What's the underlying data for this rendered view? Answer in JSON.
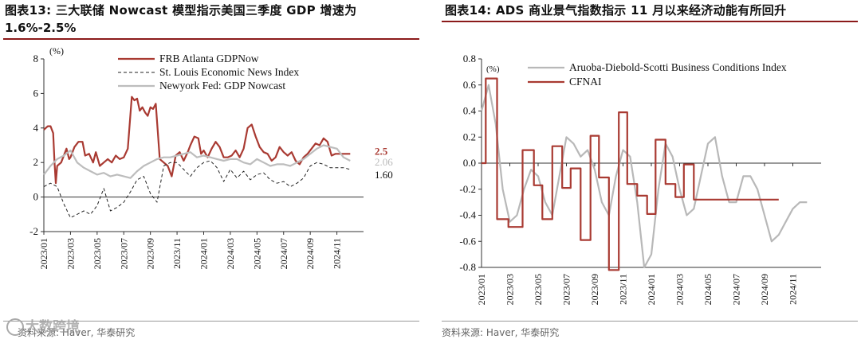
{
  "left_chart": {
    "title_line1": "图表13:  三大联储  Nowcast  模型指示美国三季度  GDP  增速为",
    "title_line2": "1.6%-2.5%",
    "source": "资料来源:  Haver,  华泰研究",
    "watermark": "大数跨境"
  },
  "right_chart": {
    "title": "图表14:  ADS 商业景气指数指示 11 月以来经济动能有所回升",
    "source": "资料来源:  Haver,  华泰研究"
  },
  "chart_data": [
    {
      "type": "line",
      "title": "三大联储 Nowcast 模型指示美国三季度 GDP 增速为 1.6%-2.5%",
      "ylabel": "(%)",
      "ylim": [
        -2,
        8
      ],
      "yticks": [
        "-2",
        "0",
        "2",
        "4",
        "6",
        "8"
      ],
      "xlim": [
        0,
        24
      ],
      "xtick_labels": [
        "2023/01",
        "2023/03",
        "2023/05",
        "2023/07",
        "2023/09",
        "2023/11",
        "2024/01",
        "2024/03",
        "2024/05",
        "2024/07",
        "2024/09",
        "2024/11"
      ],
      "end_labels": [
        "2.5",
        "2.06",
        "1.60"
      ],
      "series": [
        {
          "name": "FRB Atlanta GDPNow",
          "color": "#a93a32",
          "style": "solid",
          "x": [
            0,
            0.3,
            0.5,
            0.7,
            0.8,
            0.9,
            1.0,
            1.3,
            1.7,
            1.9,
            2.0,
            2.3,
            2.6,
            2.9,
            3.1,
            3.4,
            3.7,
            3.9,
            4.2,
            4.5,
            4.8,
            5.1,
            5.4,
            5.7,
            6.0,
            6.3,
            6.6,
            6.8,
            7.0,
            7.2,
            7.4,
            7.6,
            7.8,
            8.0,
            8.2,
            8.4,
            8.7,
            9.0,
            9.3,
            9.6,
            9.9,
            10.2,
            10.5,
            10.8,
            11.0,
            11.3,
            11.6,
            11.8,
            12.0,
            12.3,
            12.6,
            12.9,
            13.2,
            13.5,
            13.8,
            14.1,
            14.4,
            14.7,
            15.0,
            15.3,
            15.6,
            15.9,
            16.2,
            16.5,
            16.8,
            17.1,
            17.4,
            17.7,
            18.0,
            18.3,
            18.6,
            18.9,
            19.2,
            19.5,
            19.8,
            20.1,
            20.4,
            20.7,
            21.0,
            21.3,
            21.6,
            21.9,
            22.2,
            22.5,
            22.8,
            23.0
          ],
          "y": [
            3.9,
            4.1,
            4.1,
            3.7,
            2.0,
            0.8,
            1.8,
            2.0,
            2.8,
            2.2,
            2.3,
            2.9,
            3.2,
            3.2,
            2.4,
            2.5,
            2.0,
            2.6,
            1.8,
            2.0,
            2.2,
            2.0,
            2.4,
            2.2,
            2.3,
            2.8,
            5.8,
            5.6,
            5.7,
            5.0,
            5.2,
            4.9,
            4.7,
            5.2,
            5.1,
            5.4,
            2.2,
            2.0,
            1.8,
            1.2,
            2.4,
            2.6,
            2.1,
            2.6,
            3.0,
            3.5,
            3.4,
            2.5,
            2.7,
            2.3,
            2.8,
            3.2,
            2.9,
            2.3,
            2.3,
            2.4,
            2.7,
            2.3,
            2.8,
            4.0,
            4.2,
            3.5,
            2.9,
            2.6,
            2.5,
            2.1,
            2.3,
            2.9,
            2.6,
            2.4,
            2.6,
            2.1,
            1.9,
            2.3,
            2.5,
            2.8,
            3.1,
            3.0,
            3.4,
            3.2,
            2.4,
            2.5,
            2.5,
            2.5,
            2.5,
            2.5
          ]
        },
        {
          "name": "St. Louis Economic News Index",
          "color": "#222222",
          "style": "dashed",
          "x": [
            0,
            0.5,
            1.0,
            1.5,
            2.0,
            2.5,
            3.0,
            3.5,
            4.0,
            4.5,
            5.0,
            5.5,
            6.0,
            6.5,
            7.0,
            7.5,
            8.0,
            8.5,
            9.0,
            9.5,
            10.0,
            10.5,
            11.0,
            11.5,
            12.0,
            12.5,
            13.0,
            13.5,
            14.0,
            14.5,
            15.0,
            15.5,
            16.0,
            16.5,
            17.0,
            17.5,
            18.0,
            18.5,
            19.0,
            19.5,
            20.0,
            20.5,
            21.0,
            21.5,
            22.0,
            22.5,
            23.0
          ],
          "y": [
            0.6,
            0.8,
            0.6,
            -0.4,
            -1.2,
            -1.0,
            -0.8,
            -1.0,
            -0.5,
            0.5,
            -0.8,
            -0.6,
            -0.3,
            0.3,
            1.0,
            1.2,
            0.2,
            -0.3,
            1.8,
            2.0,
            2.0,
            1.6,
            1.2,
            1.7,
            2.0,
            2.1,
            1.7,
            0.9,
            1.6,
            1.1,
            1.5,
            1.0,
            1.3,
            1.4,
            1.0,
            0.8,
            0.9,
            0.6,
            0.8,
            1.1,
            1.8,
            2.0,
            1.9,
            1.7,
            1.7,
            1.7,
            1.6
          ]
        },
        {
          "name": "Newyork Fed: GDP Nowcast",
          "color": "#bdbdbd",
          "style": "solid",
          "x": [
            0,
            0.5,
            1.0,
            1.5,
            2.0,
            2.5,
            3.0,
            3.5,
            4.0,
            4.5,
            5.0,
            5.5,
            6.0,
            6.5,
            7.0,
            7.5,
            8.0,
            8.5,
            9.0,
            9.5,
            10.0,
            10.5,
            11.0,
            11.5,
            12.0,
            12.5,
            13.0,
            13.5,
            14.0,
            14.5,
            15.0,
            15.5,
            16.0,
            16.5,
            17.0,
            17.5,
            18.0,
            18.5,
            19.0,
            19.5,
            20.0,
            20.5,
            21.0,
            21.5,
            22.0,
            22.5,
            23.0
          ],
          "y": [
            1.3,
            1.8,
            2.2,
            2.4,
            2.7,
            2.0,
            1.7,
            1.5,
            1.3,
            1.4,
            1.2,
            1.3,
            1.2,
            1.1,
            1.5,
            1.8,
            2.0,
            2.2,
            2.3,
            2.3,
            2.4,
            2.5,
            2.6,
            2.3,
            2.4,
            2.3,
            2.2,
            2.1,
            2.2,
            2.2,
            2.0,
            1.9,
            2.2,
            2.0,
            1.8,
            1.9,
            1.9,
            1.8,
            2.0,
            2.2,
            2.5,
            2.8,
            3.0,
            2.9,
            2.8,
            2.3,
            2.1
          ]
        }
      ]
    },
    {
      "type": "line",
      "title": "ADS 商业景气指数指示 11 月以来经济动能有所回升",
      "ylim": [
        -0.8,
        0.8
      ],
      "yticks": [
        "-0.8",
        "-0.6",
        "-0.4",
        "-0.2",
        "0.0",
        "0.2",
        "0.4",
        "0.6",
        "0.8"
      ],
      "extra_label": "(%)",
      "xlim": [
        0,
        24
      ],
      "xtick_labels": [
        "2023/01",
        "2023/03",
        "2023/05",
        "2023/07",
        "2023/09",
        "2023/11",
        "2024/01",
        "2024/03",
        "2024/05",
        "2024/07",
        "2024/09",
        "2024/11"
      ],
      "series": [
        {
          "name": "Aruoba-Diebold-Scotti Business Conditions Index",
          "color": "#b8b8b8",
          "style": "solid",
          "x": [
            0,
            0.5,
            1.0,
            1.5,
            2.0,
            2.5,
            3.0,
            3.5,
            4.0,
            4.5,
            5.0,
            5.5,
            6.0,
            6.5,
            7.0,
            7.5,
            8.0,
            8.5,
            9.0,
            9.5,
            10.0,
            10.5,
            11.0,
            11.5,
            12.0,
            12.5,
            13.0,
            13.5,
            14.0,
            14.5,
            15.0,
            15.5,
            16.0,
            16.5,
            17.0,
            17.5,
            18.0,
            18.5,
            19.0,
            19.5,
            20.0,
            20.5,
            21.0,
            21.5,
            22.0,
            22.5,
            23.0
          ],
          "y": [
            0.4,
            0.6,
            0.3,
            -0.2,
            -0.45,
            -0.4,
            -0.2,
            -0.05,
            -0.1,
            -0.3,
            -0.4,
            -0.1,
            0.2,
            0.15,
            0.05,
            0.1,
            -0.05,
            -0.3,
            -0.4,
            -0.1,
            0.1,
            0.05,
            -0.3,
            -0.8,
            -0.7,
            -0.2,
            0.15,
            0.05,
            -0.2,
            -0.4,
            -0.35,
            -0.1,
            0.15,
            0.2,
            -0.1,
            -0.3,
            -0.3,
            -0.1,
            -0.1,
            -0.2,
            -0.4,
            -0.6,
            -0.55,
            -0.45,
            -0.35,
            -0.3,
            -0.3
          ]
        },
        {
          "name": "CFNAI",
          "color": "#a93a32",
          "style": "step",
          "x": [
            0,
            0.3,
            1.1,
            1.9,
            2.9,
            3.7,
            4.3,
            5.0,
            5.7,
            6.3,
            7.0,
            7.7,
            8.3,
            9.0,
            9.7,
            10.3,
            11.0,
            11.7,
            12.3,
            13.0,
            13.7,
            14.3,
            15.0,
            15.7,
            16.3,
            17.0,
            17.7,
            18.3,
            19.0,
            19.7,
            20.3,
            21.0
          ],
          "y": [
            0.0,
            0.65,
            -0.43,
            -0.49,
            0.1,
            -0.17,
            -0.43,
            0.13,
            -0.19,
            -0.04,
            -0.59,
            0.21,
            -0.11,
            -0.82,
            0.39,
            -0.16,
            -0.25,
            -0.39,
            0.18,
            -0.16,
            -0.26,
            -0.01,
            -0.28,
            -0.28,
            -0.28,
            -0.28,
            -0.28,
            -0.28,
            -0.28,
            -0.28,
            -0.28,
            -0.28
          ]
        }
      ]
    }
  ]
}
